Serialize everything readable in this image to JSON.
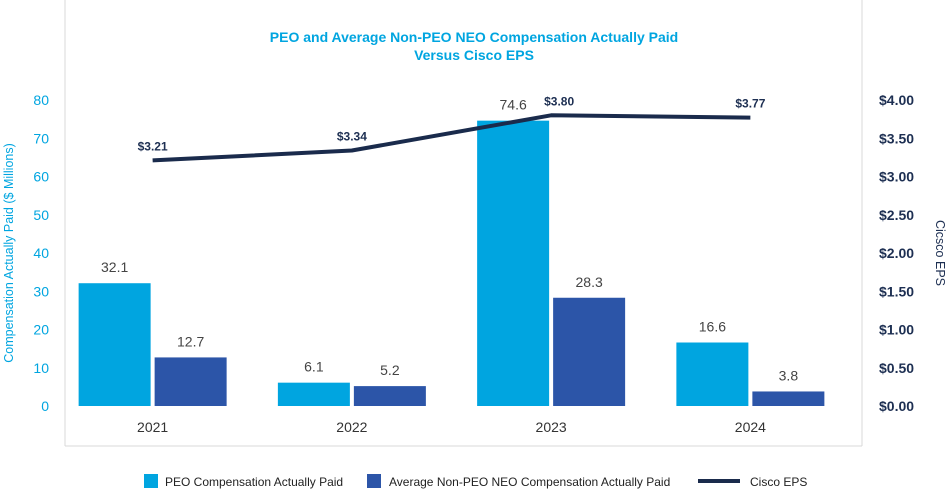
{
  "colors": {
    "peo": "#00a5e0",
    "neo": "#2c55a8",
    "eps": "#1a2b4c",
    "title": "#00a5e0",
    "left_axis": "#00a5e0",
    "right_axis": "#1d2f52",
    "frame": "#d8d8d8"
  },
  "chart_data": {
    "type": "bar",
    "title_line1": "PEO and Average Non-PEO NEO Compensation Actually Paid",
    "title_line2": "Versus Cisco EPS",
    "categories": [
      "2021",
      "2022",
      "2023",
      "2024"
    ],
    "series": [
      {
        "name": "PEO Compensation Actually Paid",
        "kind": "bar",
        "axis": "left",
        "values": [
          32.1,
          6.1,
          74.6,
          16.6
        ],
        "labels": [
          "32.1",
          "6.1",
          "74.6",
          "16.6"
        ]
      },
      {
        "name": "Average Non-PEO NEO Compensation Actually Paid",
        "kind": "bar",
        "axis": "left",
        "values": [
          12.7,
          5.2,
          28.3,
          3.8
        ],
        "labels": [
          "12.7",
          "5.2",
          "28.3",
          "3.8"
        ]
      },
      {
        "name": "Cisco EPS",
        "kind": "line",
        "axis": "right",
        "values": [
          3.21,
          3.34,
          3.8,
          3.77
        ],
        "labels": [
          "$3.21",
          "$3.34",
          "$3.80",
          "$3.77"
        ]
      }
    ],
    "ylabel_left": "Compensation Actually Paid ($ Millions)",
    "ylabel_right": "Cicsco EPS",
    "ylim_left": [
      0,
      80
    ],
    "yticks_left": [
      "0",
      "10",
      "20",
      "30",
      "40",
      "50",
      "60",
      "70",
      "80"
    ],
    "ylim_right": [
      0,
      4
    ],
    "yticks_right": [
      "$0.00",
      "$0.50",
      "$1.00",
      "$1.50",
      "$2.00",
      "$2.50",
      "$3.00",
      "$3.50",
      "$4.00"
    ],
    "grid": false,
    "legend_position": "bottom"
  }
}
